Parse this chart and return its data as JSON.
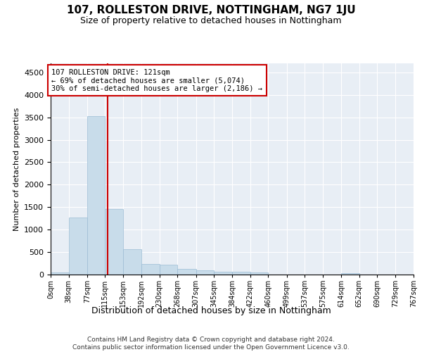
{
  "title": "107, ROLLESTON DRIVE, NOTTINGHAM, NG7 1JU",
  "subtitle": "Size of property relative to detached houses in Nottingham",
  "xlabel": "Distribution of detached houses by size in Nottingham",
  "ylabel": "Number of detached properties",
  "footnote1": "Contains HM Land Registry data © Crown copyright and database right 2024.",
  "footnote2": "Contains public sector information licensed under the Open Government Licence v3.0.",
  "annotation_line1": "107 ROLLESTON DRIVE: 121sqm",
  "annotation_line2": "← 69% of detached houses are smaller (5,074)",
  "annotation_line3": "30% of semi-detached houses are larger (2,186) →",
  "bar_color": "#c8dcea",
  "bar_edge_color": "#9bbcd4",
  "vline_color": "#cc0000",
  "annotation_box_color": "#ffffff",
  "annotation_box_edge": "#cc0000",
  "property_size": 121,
  "bin_edges": [
    0,
    38,
    77,
    115,
    153,
    192,
    230,
    268,
    307,
    345,
    384,
    422,
    460,
    499,
    537,
    575,
    614,
    652,
    690,
    729,
    767
  ],
  "bin_labels": [
    "0sqm",
    "38sqm",
    "77sqm",
    "115sqm",
    "153sqm",
    "192sqm",
    "230sqm",
    "268sqm",
    "307sqm",
    "345sqm",
    "384sqm",
    "422sqm",
    "460sqm",
    "499sqm",
    "537sqm",
    "575sqm",
    "614sqm",
    "652sqm",
    "690sqm",
    "729sqm",
    "767sqm"
  ],
  "bar_heights": [
    50,
    1270,
    3520,
    1450,
    560,
    230,
    220,
    120,
    90,
    60,
    55,
    40,
    5,
    0,
    0,
    0,
    30,
    0,
    0,
    0
  ],
  "ylim": [
    0,
    4700
  ],
  "yticks": [
    0,
    500,
    1000,
    1500,
    2000,
    2500,
    3000,
    3500,
    4000,
    4500
  ],
  "background_color": "#ffffff",
  "plot_bg_color": "#e8eef5",
  "title_fontsize": 11,
  "subtitle_fontsize": 9,
  "ylabel_fontsize": 8,
  "xlabel_fontsize": 9,
  "footnote_fontsize": 6.5
}
